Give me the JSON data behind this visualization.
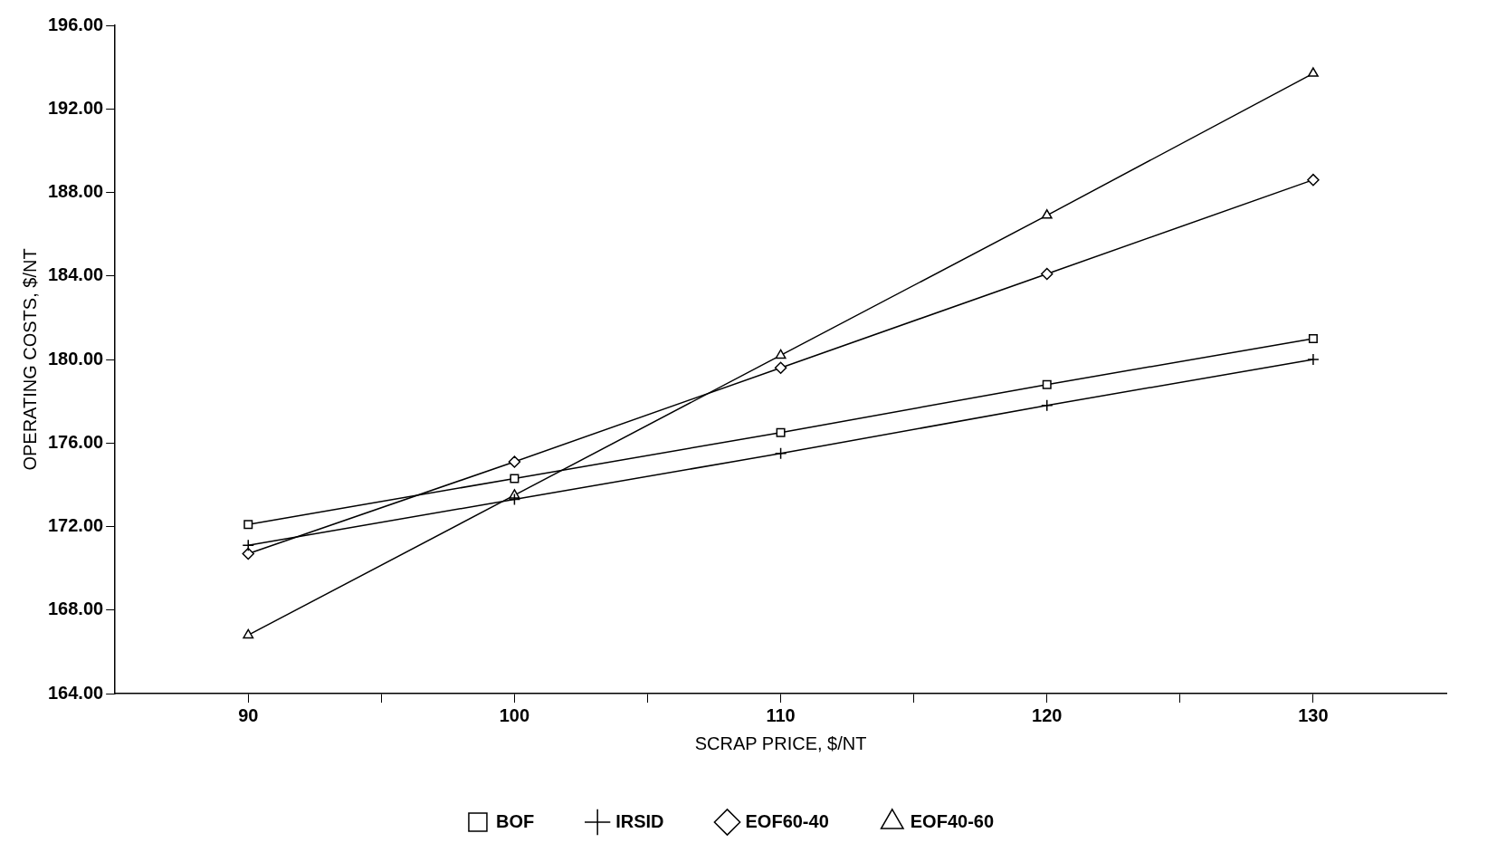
{
  "chart_data": {
    "type": "line",
    "xlabel": "SCRAP PRICE, $/NT",
    "ylabel": "OPERATING COSTS, $/NT",
    "x": [
      90,
      100,
      110,
      120,
      130
    ],
    "series": [
      {
        "name": "BOF",
        "color": "#000000",
        "marker": "square",
        "values": [
          172.1,
          174.3,
          176.5,
          178.8,
          181.0
        ]
      },
      {
        "name": "IRSID",
        "color": "#000000",
        "marker": "cross",
        "values": [
          171.1,
          173.3,
          175.5,
          177.8,
          180.0
        ]
      },
      {
        "name": "EOF60-40",
        "color": "#000000",
        "marker": "diamond",
        "values": [
          170.7,
          175.1,
          179.6,
          184.1,
          188.6
        ]
      },
      {
        "name": "EOF40-60",
        "color": "#000000",
        "marker": "triangle",
        "values": [
          166.8,
          173.5,
          180.2,
          186.9,
          193.7
        ]
      }
    ],
    "xlim": [
      85,
      135
    ],
    "xticks": [
      90,
      {
        "value": 95,
        "label": null
      },
      100,
      {
        "value": 105,
        "label": null
      },
      110,
      {
        "value": 115,
        "label": null
      },
      120,
      {
        "value": 125,
        "label": null
      },
      130
    ],
    "ylim": [
      164,
      196
    ],
    "yticks": [
      {
        "value": 164,
        "label": "164.00"
      },
      {
        "value": 168,
        "label": "168.00"
      },
      {
        "value": 172,
        "label": "172.00"
      },
      {
        "value": 176,
        "label": "176.00"
      },
      {
        "value": 180,
        "label": "180.00"
      },
      {
        "value": 184,
        "label": "184.00"
      },
      {
        "value": 188,
        "label": "188.00"
      },
      {
        "value": 192,
        "label": "192.00"
      },
      {
        "value": 196,
        "label": "196.00"
      }
    ],
    "grid": false,
    "legend": "bottom",
    "line_style": "solid"
  }
}
